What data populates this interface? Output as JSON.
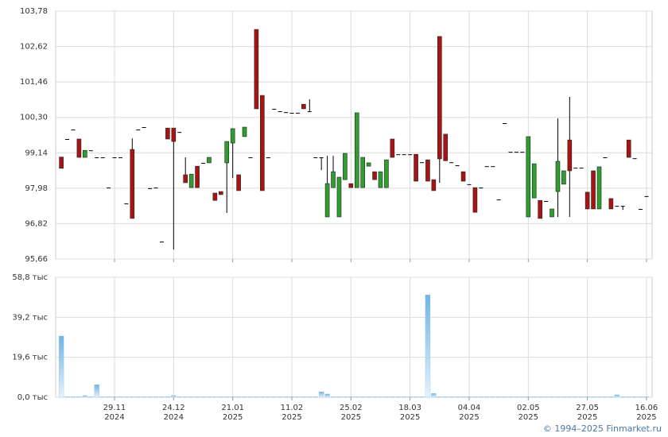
{
  "chart_data": [
    {
      "type": "candlestick",
      "up_color": "#2e9e2e",
      "down_color": "#a81414",
      "grid": true,
      "ylim": [
        95.66,
        103.78
      ],
      "yticks": [
        {
          "value": 95.66,
          "label": "95,66"
        },
        {
          "value": 96.82,
          "label": "96,82"
        },
        {
          "value": 97.98,
          "label": "97,98"
        },
        {
          "value": 99.14,
          "label": "99,14"
        },
        {
          "value": 100.3,
          "label": "100,30"
        },
        {
          "value": 101.46,
          "label": "101,46"
        },
        {
          "value": 102.62,
          "label": "102,62"
        },
        {
          "value": 103.78,
          "label": "103,78"
        }
      ],
      "open": [
        99.0,
        99.59,
        99.9,
        99.59,
        98.99,
        99.22,
        98.99,
        98.99,
        98.0,
        98.99,
        98.99,
        97.48,
        99.25,
        99.9,
        99.98,
        97.98,
        98.0,
        96.23,
        99.95,
        99.95,
        99.82,
        98.42,
        98.0,
        98.7,
        98.81,
        98.81,
        97.82,
        97.87,
        98.81,
        99.46,
        98.42,
        99.67,
        98.99,
        103.18,
        101.02,
        98.99,
        100.58,
        100.5,
        100.47,
        100.45,
        100.45,
        100.73,
        100.5,
        98.99,
        98.99,
        97.04,
        98.0,
        97.04,
        98.26,
        98.13,
        98.0,
        98.0,
        98.7,
        98.52,
        98.0,
        98.0,
        99.59,
        99.09,
        99.09,
        99.09,
        99.09,
        98.83,
        98.91,
        98.26,
        102.95,
        99.75,
        98.83,
        98.73,
        98.52,
        98.11,
        98.0,
        98.0,
        98.7,
        98.7,
        97.61,
        100.11,
        99.17,
        99.17,
        99.17,
        97.04,
        97.66,
        97.58,
        97.56,
        97.04,
        97.87,
        98.11,
        99.56,
        98.65,
        98.65,
        97.85,
        98.55,
        97.3,
        98.99,
        97.64,
        97.4,
        97.4,
        99.56,
        98.96,
        97.3,
        97.72
      ],
      "high": [
        99.0,
        99.59,
        99.9,
        99.59,
        99.22,
        99.22,
        98.99,
        98.99,
        98.0,
        98.99,
        98.99,
        97.48,
        99.61,
        99.9,
        99.98,
        97.98,
        98.0,
        96.23,
        99.95,
        99.95,
        99.82,
        98.99,
        98.44,
        98.7,
        98.81,
        98.99,
        97.82,
        97.87,
        99.51,
        99.93,
        98.42,
        99.98,
        98.99,
        103.18,
        101.02,
        98.99,
        100.58,
        100.5,
        100.47,
        100.45,
        100.45,
        100.73,
        100.89,
        98.99,
        98.99,
        99.04,
        99.04,
        98.34,
        99.12,
        98.13,
        100.45,
        98.99,
        98.81,
        98.52,
        98.52,
        98.91,
        99.59,
        99.09,
        99.09,
        99.09,
        99.09,
        98.83,
        98.91,
        98.26,
        102.95,
        99.75,
        98.83,
        98.73,
        98.52,
        98.11,
        98.0,
        98.0,
        98.7,
        98.7,
        97.61,
        100.11,
        99.17,
        99.17,
        99.17,
        99.67,
        98.78,
        97.58,
        97.56,
        97.3,
        100.27,
        98.55,
        100.97,
        98.65,
        98.65,
        97.85,
        98.55,
        98.68,
        98.99,
        97.64,
        97.4,
        97.4,
        99.56,
        98.96,
        97.3,
        97.72
      ],
      "low": [
        98.63,
        99.59,
        99.9,
        98.99,
        98.99,
        99.22,
        98.99,
        98.99,
        98.0,
        98.99,
        98.99,
        97.48,
        96.99,
        99.9,
        99.98,
        97.98,
        98.0,
        96.23,
        99.59,
        95.97,
        99.82,
        98.16,
        98.0,
        98.0,
        98.81,
        98.81,
        97.58,
        97.77,
        97.17,
        98.31,
        97.9,
        99.67,
        98.99,
        100.58,
        97.9,
        98.99,
        100.58,
        100.5,
        100.47,
        100.45,
        100.45,
        100.58,
        100.47,
        98.99,
        98.57,
        97.04,
        98.0,
        97.04,
        98.26,
        98.0,
        98.0,
        98.0,
        98.7,
        98.26,
        98.0,
        98.0,
        98.99,
        99.09,
        99.09,
        99.09,
        98.21,
        98.83,
        98.21,
        97.9,
        98.16,
        98.88,
        98.83,
        98.73,
        98.21,
        98.11,
        97.19,
        98.0,
        98.7,
        98.7,
        97.61,
        100.11,
        99.17,
        99.17,
        99.17,
        97.04,
        97.66,
        96.99,
        97.56,
        97.04,
        97.04,
        98.11,
        97.04,
        98.65,
        98.65,
        97.3,
        97.3,
        97.3,
        98.99,
        97.3,
        97.4,
        97.27,
        98.99,
        98.96,
        97.3,
        97.72
      ],
      "close": [
        98.63,
        99.59,
        99.9,
        98.99,
        99.22,
        99.22,
        98.99,
        98.99,
        98.0,
        98.99,
        98.99,
        97.48,
        96.99,
        99.9,
        99.98,
        97.98,
        98.0,
        96.23,
        99.59,
        99.51,
        99.82,
        98.16,
        98.44,
        98.0,
        98.81,
        98.99,
        97.58,
        97.77,
        99.51,
        99.93,
        97.9,
        99.98,
        98.99,
        100.58,
        97.9,
        98.99,
        100.58,
        100.5,
        100.47,
        100.45,
        100.45,
        100.58,
        100.5,
        98.99,
        98.99,
        98.13,
        98.52,
        98.34,
        99.12,
        98.0,
        100.45,
        98.99,
        98.81,
        98.26,
        98.52,
        98.91,
        98.99,
        99.09,
        99.09,
        99.09,
        98.21,
        98.83,
        98.21,
        97.9,
        98.94,
        98.88,
        98.83,
        98.73,
        98.21,
        98.11,
        97.19,
        98.0,
        98.7,
        98.7,
        97.61,
        100.11,
        99.17,
        99.17,
        99.17,
        99.67,
        98.78,
        96.99,
        97.56,
        97.3,
        98.86,
        98.55,
        98.55,
        98.65,
        98.65,
        97.3,
        97.3,
        98.68,
        98.99,
        97.3,
        97.4,
        97.4,
        98.99,
        98.96,
        97.3,
        97.72
      ]
    },
    {
      "type": "bar",
      "color": "#7dbde8",
      "grid": true,
      "ylim": [
        0,
        58.8
      ],
      "yticks": [
        {
          "value": 0,
          "label": "0,0 тыс"
        },
        {
          "value": 19.6,
          "label": "19,6 тыс"
        },
        {
          "value": 39.2,
          "label": "39,2 тыс"
        },
        {
          "value": 58.8,
          "label": "58,8 тыс"
        }
      ],
      "categories": [
        null,
        null,
        null,
        null,
        null,
        null,
        null,
        null,
        null,
        "29.11\n2024",
        null,
        null,
        null,
        null,
        null,
        null,
        null,
        null,
        null,
        "24.12\n2024",
        null,
        null,
        null,
        null,
        null,
        null,
        null,
        null,
        null,
        "21.01\n2025",
        null,
        null,
        null,
        null,
        null,
        null,
        null,
        null,
        null,
        "11.02\n2025",
        null,
        null,
        null,
        null,
        null,
        null,
        null,
        null,
        null,
        "25.02\n2025",
        null,
        null,
        null,
        null,
        null,
        null,
        null,
        null,
        null,
        "18.03\n2025",
        null,
        null,
        null,
        null,
        null,
        null,
        null,
        null,
        null,
        "04.04\n2025",
        null,
        null,
        null,
        null,
        null,
        null,
        null,
        null,
        null,
        "02.05\n2025",
        null,
        null,
        null,
        null,
        null,
        null,
        null,
        null,
        null,
        "27.05\n2025",
        null,
        null,
        null,
        null,
        null,
        null,
        null,
        null,
        null,
        "16.06\n2025"
      ],
      "values": [
        30.0,
        0.3,
        0.3,
        0.3,
        0.8,
        0.3,
        6.2,
        0.3,
        0.3,
        0.3,
        0.3,
        0.3,
        0.3,
        0.3,
        0.3,
        0.3,
        0.3,
        0.3,
        0.3,
        0.9,
        0.3,
        0.3,
        0.3,
        0.3,
        0.3,
        0.3,
        0.3,
        0.3,
        0.3,
        0.3,
        0.3,
        0.3,
        0.3,
        0.3,
        0.3,
        0.3,
        0.3,
        0.3,
        0.3,
        0.3,
        0.3,
        0.3,
        0.3,
        0.3,
        2.7,
        1.6,
        0.3,
        0.3,
        0.3,
        0.3,
        0.3,
        0.3,
        0.3,
        0.3,
        0.3,
        0.3,
        0.3,
        0.3,
        0.3,
        0.3,
        0.3,
        0.3,
        50.2,
        1.9,
        0.3,
        0.3,
        0.3,
        0.3,
        0.3,
        0.3,
        0.3,
        0.3,
        0.3,
        0.3,
        0.3,
        0.3,
        0.3,
        0.3,
        0.3,
        0.3,
        0.3,
        0.3,
        0.3,
        0.3,
        0.3,
        0.3,
        0.3,
        0.3,
        0.3,
        0.3,
        0.3,
        0.3,
        0.3,
        0.3,
        1.2,
        0.3,
        0.3,
        0.3,
        0.3,
        0.3
      ]
    }
  ],
  "footer": "© 1994–2025 Finmarket.ru"
}
